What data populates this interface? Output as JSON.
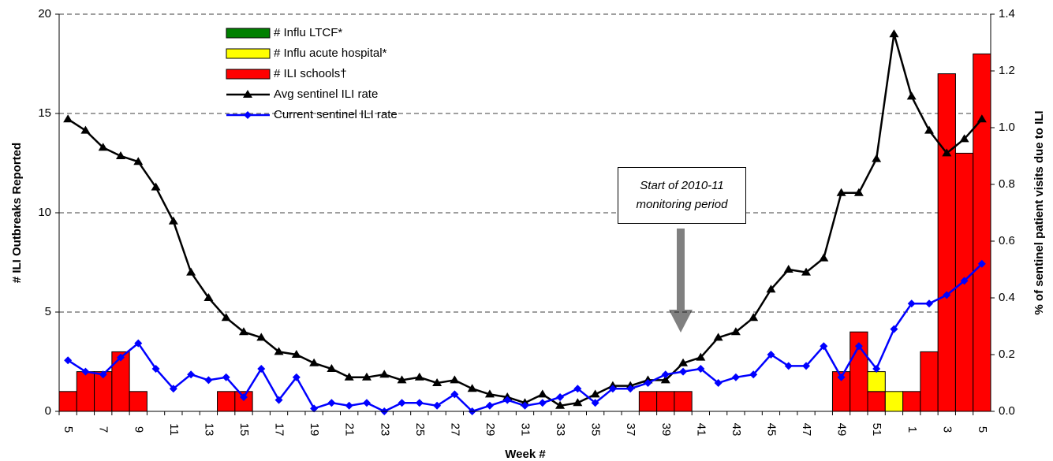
{
  "chart_data": {
    "type": "bar",
    "xlabel": "Week #",
    "ylabel": "# ILI Outbreaks Reported",
    "y2label": "% of sentinel patient visits due to ILI",
    "categories": [
      "5",
      null,
      "7",
      null,
      "9",
      null,
      "11",
      null,
      "13",
      null,
      "15",
      null,
      "17",
      null,
      "19",
      null,
      "21",
      null,
      "23",
      null,
      "25",
      null,
      "27",
      null,
      "29",
      null,
      "31",
      null,
      "33",
      null,
      "35",
      null,
      "37",
      null,
      "39",
      null,
      "41",
      null,
      "43",
      null,
      "45",
      null,
      "47",
      null,
      "49",
      null,
      "51",
      null,
      "1",
      null,
      "3",
      null,
      "5"
    ],
    "ylim": [
      0,
      20
    ],
    "yticks": [
      0,
      5,
      10,
      15,
      20
    ],
    "y2lim": [
      0,
      1.4
    ],
    "y2ticks": [
      {
        "value": 0,
        "label": "0.0"
      },
      {
        "value": 0.2,
        "label": "0.2"
      },
      {
        "value": 0.4,
        "label": "0.4"
      },
      {
        "value": 0.6,
        "label": "0.6"
      },
      {
        "value": 0.8,
        "label": "0.8"
      },
      {
        "value": 1.0,
        "label": "1.0"
      },
      {
        "value": 1.2,
        "label": "1.2"
      },
      {
        "value": 1.4,
        "label": "1.4"
      }
    ],
    "grid": true,
    "legend": "upper left",
    "series": [
      {
        "name": "# Influ LTCF*",
        "type": "bar",
        "color": "#008000",
        "values": [
          0,
          0,
          0,
          0,
          0,
          0,
          0,
          0,
          0,
          0,
          0,
          0,
          0,
          0,
          0,
          0,
          0,
          0,
          0,
          0,
          0,
          0,
          0,
          0,
          0,
          0,
          0,
          0,
          0,
          0,
          0,
          0,
          0,
          0,
          0,
          0,
          0,
          0,
          0,
          0,
          0,
          0,
          0,
          0,
          0,
          0,
          0,
          0,
          0,
          0,
          0,
          0,
          0
        ]
      },
      {
        "name": "# Influ acute hospital*",
        "type": "bar",
        "color": "#ffff00",
        "values": [
          0,
          0,
          0,
          0,
          0,
          0,
          0,
          0,
          0,
          0,
          0,
          0,
          0,
          0,
          0,
          0,
          0,
          0,
          0,
          0,
          0,
          0,
          0,
          0,
          0,
          0,
          0,
          0,
          0,
          0,
          0,
          0,
          0,
          0,
          0,
          0,
          0,
          0,
          0,
          0,
          0,
          0,
          0,
          0,
          0,
          0,
          1,
          1,
          0,
          0,
          0,
          0,
          0
        ]
      },
      {
        "name": "# ILI schools†",
        "type": "bar",
        "color": "#ff0000",
        "values": [
          1,
          2,
          2,
          3,
          1,
          0,
          0,
          0,
          0,
          1,
          1,
          0,
          0,
          0,
          0,
          0,
          0,
          0,
          0,
          0,
          0,
          0,
          0,
          0,
          0,
          0,
          0,
          0,
          0,
          0,
          0,
          0,
          0,
          1,
          1,
          1,
          0,
          0,
          0,
          0,
          0,
          0,
          0,
          0,
          2,
          4,
          1,
          0,
          1,
          3,
          17,
          13,
          18
        ]
      },
      {
        "name": "Avg sentinel ILI rate",
        "type": "line",
        "axis": "y2",
        "marker": "triangle",
        "color": "#000000",
        "values": [
          1.03,
          0.99,
          0.93,
          0.9,
          0.88,
          0.79,
          0.67,
          0.49,
          0.4,
          0.33,
          0.28,
          0.26,
          0.21,
          0.2,
          0.17,
          0.15,
          0.12,
          0.12,
          0.13,
          0.11,
          0.12,
          0.1,
          0.11,
          0.08,
          0.06,
          0.05,
          0.03,
          0.06,
          0.02,
          0.03,
          0.06,
          0.09,
          0.09,
          0.11,
          0.11,
          0.17,
          0.19,
          0.26,
          0.28,
          0.33,
          0.43,
          0.5,
          0.49,
          0.54,
          0.77,
          0.77,
          0.89,
          1.33,
          1.11,
          0.99,
          0.91,
          0.96,
          1.03
        ]
      },
      {
        "name": "Current sentinel ILI rate",
        "type": "line",
        "axis": "y2",
        "marker": "diamond",
        "color": "#0000ff",
        "values": [
          0.18,
          0.14,
          0.13,
          0.19,
          0.24,
          0.15,
          0.08,
          0.13,
          0.11,
          0.12,
          0.05,
          0.15,
          0.04,
          0.12,
          0.01,
          0.03,
          0.02,
          0.03,
          0.0,
          0.03,
          0.03,
          0.02,
          0.06,
          0.0,
          0.02,
          0.04,
          0.02,
          0.03,
          0.05,
          0.08,
          0.03,
          0.08,
          0.08,
          0.1,
          0.13,
          0.14,
          0.15,
          0.1,
          0.12,
          0.13,
          0.2,
          0.16,
          0.16,
          0.23,
          0.12,
          0.23,
          0.15,
          0.29,
          0.38,
          0.38,
          0.41,
          0.46,
          0.52
        ]
      }
    ],
    "annotations": [
      {
        "text": "Start of 2010-11 monitoring period"
      }
    ]
  }
}
